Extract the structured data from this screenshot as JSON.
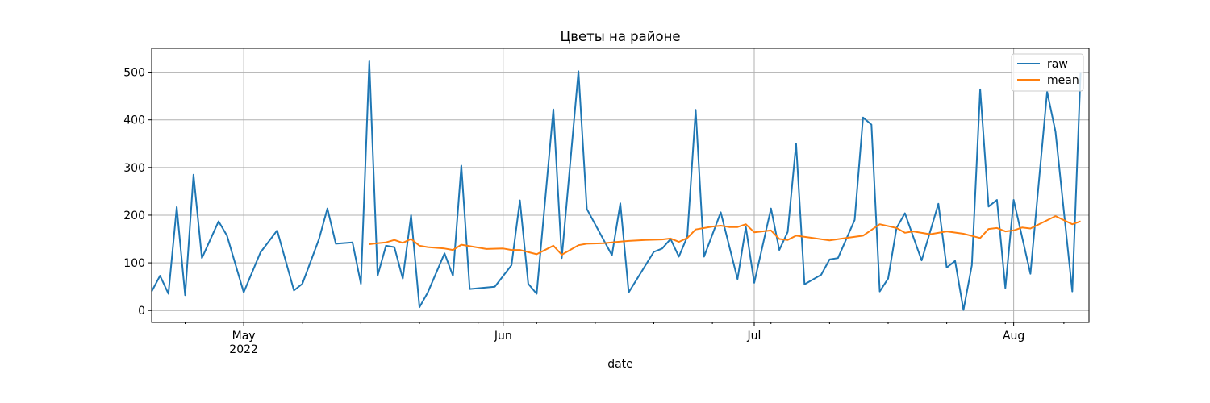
{
  "chart_data": {
    "type": "line",
    "title": "Цветы на районе",
    "xlabel": "date",
    "ylabel": "",
    "xlim": [
      "2022-04-20",
      "2022-08-10"
    ],
    "ylim": [
      -25,
      550
    ],
    "grid": true,
    "legend_position": "upper right",
    "x_ticks": [
      {
        "date": "2022-05-01",
        "label": "May",
        "sublabel": "2022"
      },
      {
        "date": "2022-06-01",
        "label": "Jun",
        "sublabel": ""
      },
      {
        "date": "2022-07-01",
        "label": "Jul",
        "sublabel": ""
      },
      {
        "date": "2022-08-01",
        "label": "Aug",
        "sublabel": ""
      }
    ],
    "y_ticks": [
      0,
      100,
      200,
      300,
      400,
      500
    ],
    "colors": {
      "raw": "#1f77b4",
      "mean": "#ff7f0e"
    },
    "series": [
      {
        "name": "raw",
        "points": [
          [
            "2022-04-20",
            40
          ],
          [
            "2022-04-21",
            73
          ],
          [
            "2022-04-22",
            35
          ],
          [
            "2022-04-23",
            217
          ],
          [
            "2022-04-24",
            32
          ],
          [
            "2022-04-25",
            285
          ],
          [
            "2022-04-26",
            110
          ],
          [
            "2022-04-28",
            187
          ],
          [
            "2022-04-29",
            157
          ],
          [
            "2022-05-01",
            38
          ],
          [
            "2022-05-03",
            122
          ],
          [
            "2022-05-05",
            168
          ],
          [
            "2022-05-07",
            42
          ],
          [
            "2022-05-08",
            56
          ],
          [
            "2022-05-10",
            150
          ],
          [
            "2022-05-11",
            214
          ],
          [
            "2022-05-12",
            140
          ],
          [
            "2022-05-14",
            143
          ],
          [
            "2022-05-15",
            56
          ],
          [
            "2022-05-16",
            523
          ],
          [
            "2022-05-17",
            73
          ],
          [
            "2022-05-18",
            136
          ],
          [
            "2022-05-19",
            133
          ],
          [
            "2022-05-20",
            67
          ],
          [
            "2022-05-21",
            200
          ],
          [
            "2022-05-22",
            7
          ],
          [
            "2022-05-23",
            38
          ],
          [
            "2022-05-25",
            120
          ],
          [
            "2022-05-26",
            73
          ],
          [
            "2022-05-27",
            304
          ],
          [
            "2022-05-28",
            45
          ],
          [
            "2022-05-31",
            50
          ],
          [
            "2022-06-02",
            95
          ],
          [
            "2022-06-03",
            231
          ],
          [
            "2022-06-04",
            56
          ],
          [
            "2022-06-05",
            35
          ],
          [
            "2022-06-07",
            422
          ],
          [
            "2022-06-08",
            110
          ],
          [
            "2022-06-10",
            502
          ],
          [
            "2022-06-11",
            213
          ],
          [
            "2022-06-14",
            116
          ],
          [
            "2022-06-15",
            225
          ],
          [
            "2022-06-16",
            38
          ],
          [
            "2022-06-19",
            123
          ],
          [
            "2022-06-20",
            130
          ],
          [
            "2022-06-21",
            150
          ],
          [
            "2022-06-22",
            113
          ],
          [
            "2022-06-23",
            155
          ],
          [
            "2022-06-24",
            421
          ],
          [
            "2022-06-25",
            113
          ],
          [
            "2022-06-27",
            206
          ],
          [
            "2022-06-29",
            66
          ],
          [
            "2022-06-30",
            175
          ],
          [
            "2022-07-01",
            58
          ],
          [
            "2022-07-03",
            214
          ],
          [
            "2022-07-04",
            127
          ],
          [
            "2022-07-05",
            165
          ],
          [
            "2022-07-06",
            350
          ],
          [
            "2022-07-07",
            55
          ],
          [
            "2022-07-09",
            75
          ],
          [
            "2022-07-10",
            107
          ],
          [
            "2022-07-11",
            110
          ],
          [
            "2022-07-13",
            190
          ],
          [
            "2022-07-14",
            405
          ],
          [
            "2022-07-15",
            390
          ],
          [
            "2022-07-16",
            40
          ],
          [
            "2022-07-17",
            67
          ],
          [
            "2022-07-18",
            173
          ],
          [
            "2022-07-19",
            204
          ],
          [
            "2022-07-21",
            105
          ],
          [
            "2022-07-23",
            224
          ],
          [
            "2022-07-24",
            90
          ],
          [
            "2022-07-25",
            104
          ],
          [
            "2022-07-26",
            1
          ],
          [
            "2022-07-27",
            95
          ],
          [
            "2022-07-28",
            464
          ],
          [
            "2022-07-29",
            218
          ],
          [
            "2022-07-30",
            232
          ],
          [
            "2022-07-31",
            47
          ],
          [
            "2022-08-01",
            232
          ],
          [
            "2022-08-03",
            77
          ],
          [
            "2022-08-05",
            459
          ],
          [
            "2022-08-06",
            375
          ],
          [
            "2022-08-08",
            40
          ],
          [
            "2022-08-09",
            500
          ]
        ]
      },
      {
        "name": "mean",
        "points": [
          [
            "2022-05-16",
            139
          ],
          [
            "2022-05-17",
            141
          ],
          [
            "2022-05-18",
            143
          ],
          [
            "2022-05-19",
            148
          ],
          [
            "2022-05-20",
            142
          ],
          [
            "2022-05-21",
            150
          ],
          [
            "2022-05-22",
            136
          ],
          [
            "2022-05-23",
            133
          ],
          [
            "2022-05-25",
            130
          ],
          [
            "2022-05-26",
            127
          ],
          [
            "2022-05-27",
            138
          ],
          [
            "2022-05-28",
            135
          ],
          [
            "2022-05-30",
            129
          ],
          [
            "2022-06-01",
            130
          ],
          [
            "2022-06-02",
            127
          ],
          [
            "2022-06-03",
            127
          ],
          [
            "2022-06-05",
            118
          ],
          [
            "2022-06-07",
            136
          ],
          [
            "2022-06-08",
            117
          ],
          [
            "2022-06-10",
            137
          ],
          [
            "2022-06-11",
            140
          ],
          [
            "2022-06-13",
            141
          ],
          [
            "2022-06-14",
            143
          ],
          [
            "2022-06-16",
            146
          ],
          [
            "2022-06-18",
            148
          ],
          [
            "2022-06-20",
            149
          ],
          [
            "2022-06-21",
            151
          ],
          [
            "2022-06-22",
            144
          ],
          [
            "2022-06-23",
            152
          ],
          [
            "2022-06-24",
            170
          ],
          [
            "2022-06-26",
            176
          ],
          [
            "2022-06-27",
            178
          ],
          [
            "2022-06-28",
            175
          ],
          [
            "2022-06-29",
            175
          ],
          [
            "2022-06-30",
            181
          ],
          [
            "2022-07-01",
            164
          ],
          [
            "2022-07-03",
            168
          ],
          [
            "2022-07-04",
            150
          ],
          [
            "2022-07-05",
            148
          ],
          [
            "2022-07-06",
            157
          ],
          [
            "2022-07-08",
            152
          ],
          [
            "2022-07-10",
            147
          ],
          [
            "2022-07-12",
            152
          ],
          [
            "2022-07-14",
            157
          ],
          [
            "2022-07-16",
            181
          ],
          [
            "2022-07-18",
            173
          ],
          [
            "2022-07-19",
            163
          ],
          [
            "2022-07-20",
            166
          ],
          [
            "2022-07-22",
            160
          ],
          [
            "2022-07-24",
            166
          ],
          [
            "2022-07-26",
            161
          ],
          [
            "2022-07-28",
            152
          ],
          [
            "2022-07-29",
            171
          ],
          [
            "2022-07-30",
            173
          ],
          [
            "2022-07-31",
            166
          ],
          [
            "2022-08-01",
            168
          ],
          [
            "2022-08-02",
            174
          ],
          [
            "2022-08-03",
            172
          ],
          [
            "2022-08-06",
            198
          ],
          [
            "2022-08-08",
            181
          ],
          [
            "2022-08-09",
            187
          ]
        ]
      }
    ]
  }
}
